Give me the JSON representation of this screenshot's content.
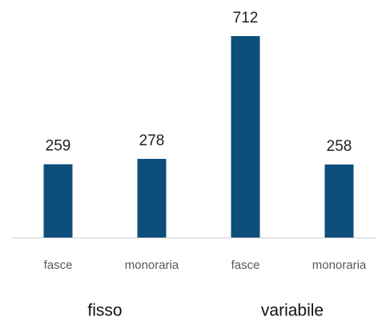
{
  "chart_data": {
    "type": "bar",
    "categories": [
      "fasce",
      "monoraria",
      "fasce",
      "monoraria"
    ],
    "groups": [
      "fisso",
      "variabile"
    ],
    "values": [
      259,
      278,
      712,
      258
    ],
    "color": "#0d4e7a"
  }
}
